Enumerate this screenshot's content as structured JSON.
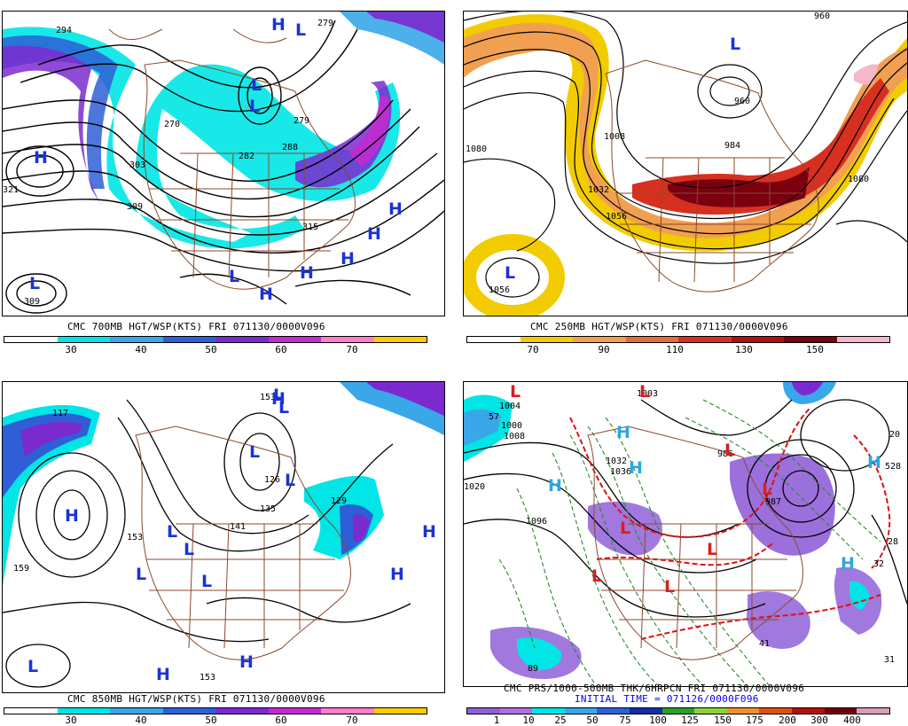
{
  "colors": {
    "background": "#ffffff",
    "contour": "#000000",
    "borders": "#8b4a2b",
    "high_low_700_850": "#1a33d6",
    "low_precip": "#d62020",
    "high_precip": "#27a9e1",
    "thickness_dashed": "#2a8a2a",
    "freezing_line": "#e01010"
  },
  "panels": [
    {
      "id": "700mb",
      "title": "CMC 700MB HGT/WSP(KTS) FRI 071130/0000V096",
      "colorbar": {
        "labels": [
          "30",
          "40",
          "50",
          "60",
          "70"
        ],
        "colors": [
          "#ffffff",
          "#00e5e5",
          "#39a7e8",
          "#2e5fd6",
          "#7b2ad0",
          "#c22ad0",
          "#ff7ec8",
          "#ffcc00"
        ]
      },
      "labels": [
        "294",
        "270",
        "279",
        "282",
        "303",
        "309",
        "315",
        "321",
        "309",
        "288",
        "279"
      ],
      "highs": [
        "H",
        "H",
        "H",
        "H",
        "H",
        "H",
        "H"
      ],
      "lows": [
        "L",
        "L",
        "L",
        "L",
        "L"
      ]
    },
    {
      "id": "250mb",
      "title": "CMC 250MB HGT/WSP(KTS) FRI 071130/0000V096",
      "colorbar": {
        "labels": [
          "70",
          "90",
          "110",
          "130",
          "150"
        ],
        "colors": [
          "#ffffff",
          "#f2cc00",
          "#f0a050",
          "#e0703a",
          "#d83020",
          "#b01010",
          "#7a0010",
          "#f4b8c8"
        ]
      },
      "labels": [
        "960",
        "984",
        "1008",
        "1032",
        "1056",
        "1080",
        "1080",
        "1056",
        "960"
      ],
      "highs": [],
      "lows": [
        "L",
        "L"
      ]
    },
    {
      "id": "850mb",
      "title": "CMC 850MB HGT/WSP(KTS) FRI 071130/0000V096",
      "colorbar": {
        "labels": [
          "30",
          "40",
          "50",
          "60",
          "70"
        ],
        "colors": [
          "#ffffff",
          "#00e5e5",
          "#39a7e8",
          "#2e5fd6",
          "#7b2ad0",
          "#c22ad0",
          "#ff7ec8",
          "#ffcc00"
        ]
      },
      "labels": [
        "129",
        "141",
        "135",
        "159",
        "153",
        "153",
        "126",
        "117",
        "153"
      ],
      "highs": [
        "H",
        "H",
        "H",
        "H",
        "H",
        "H"
      ],
      "lows": [
        "L",
        "L",
        "L",
        "L",
        "L",
        "L",
        "L",
        "L",
        "L"
      ]
    },
    {
      "id": "prs",
      "title": "CMC PRS/1000-500MB THK/6HRPCN FRI 071130/0000V096",
      "subtitle": "INITIAL TIME = 071126/0000F096",
      "colorbar": {
        "labels": [
          "1",
          "10",
          "25",
          "50",
          "75",
          "100",
          "125",
          "150",
          "175",
          "200",
          "300",
          "400"
        ],
        "colors": [
          "#9060d8",
          "#b070e0",
          "#00e5e5",
          "#39a7e8",
          "#2e5fd6",
          "#1030a0",
          "#2aa02a",
          "#90d040",
          "#f09030",
          "#e05010",
          "#b01010",
          "#700010",
          "#d8a0b8"
        ]
      },
      "labels": [
        "1096",
        "1036",
        "1020",
        "1032",
        "1008",
        "986",
        "1000",
        "1004",
        "57",
        "528",
        "28",
        "32",
        "41",
        "31",
        "89",
        "20",
        "1003",
        "987"
      ],
      "highs": [
        "H",
        "H",
        "H",
        "H",
        "H"
      ],
      "lows": [
        "L",
        "L",
        "L",
        "L",
        "L",
        "L",
        "L",
        "L"
      ]
    }
  ]
}
